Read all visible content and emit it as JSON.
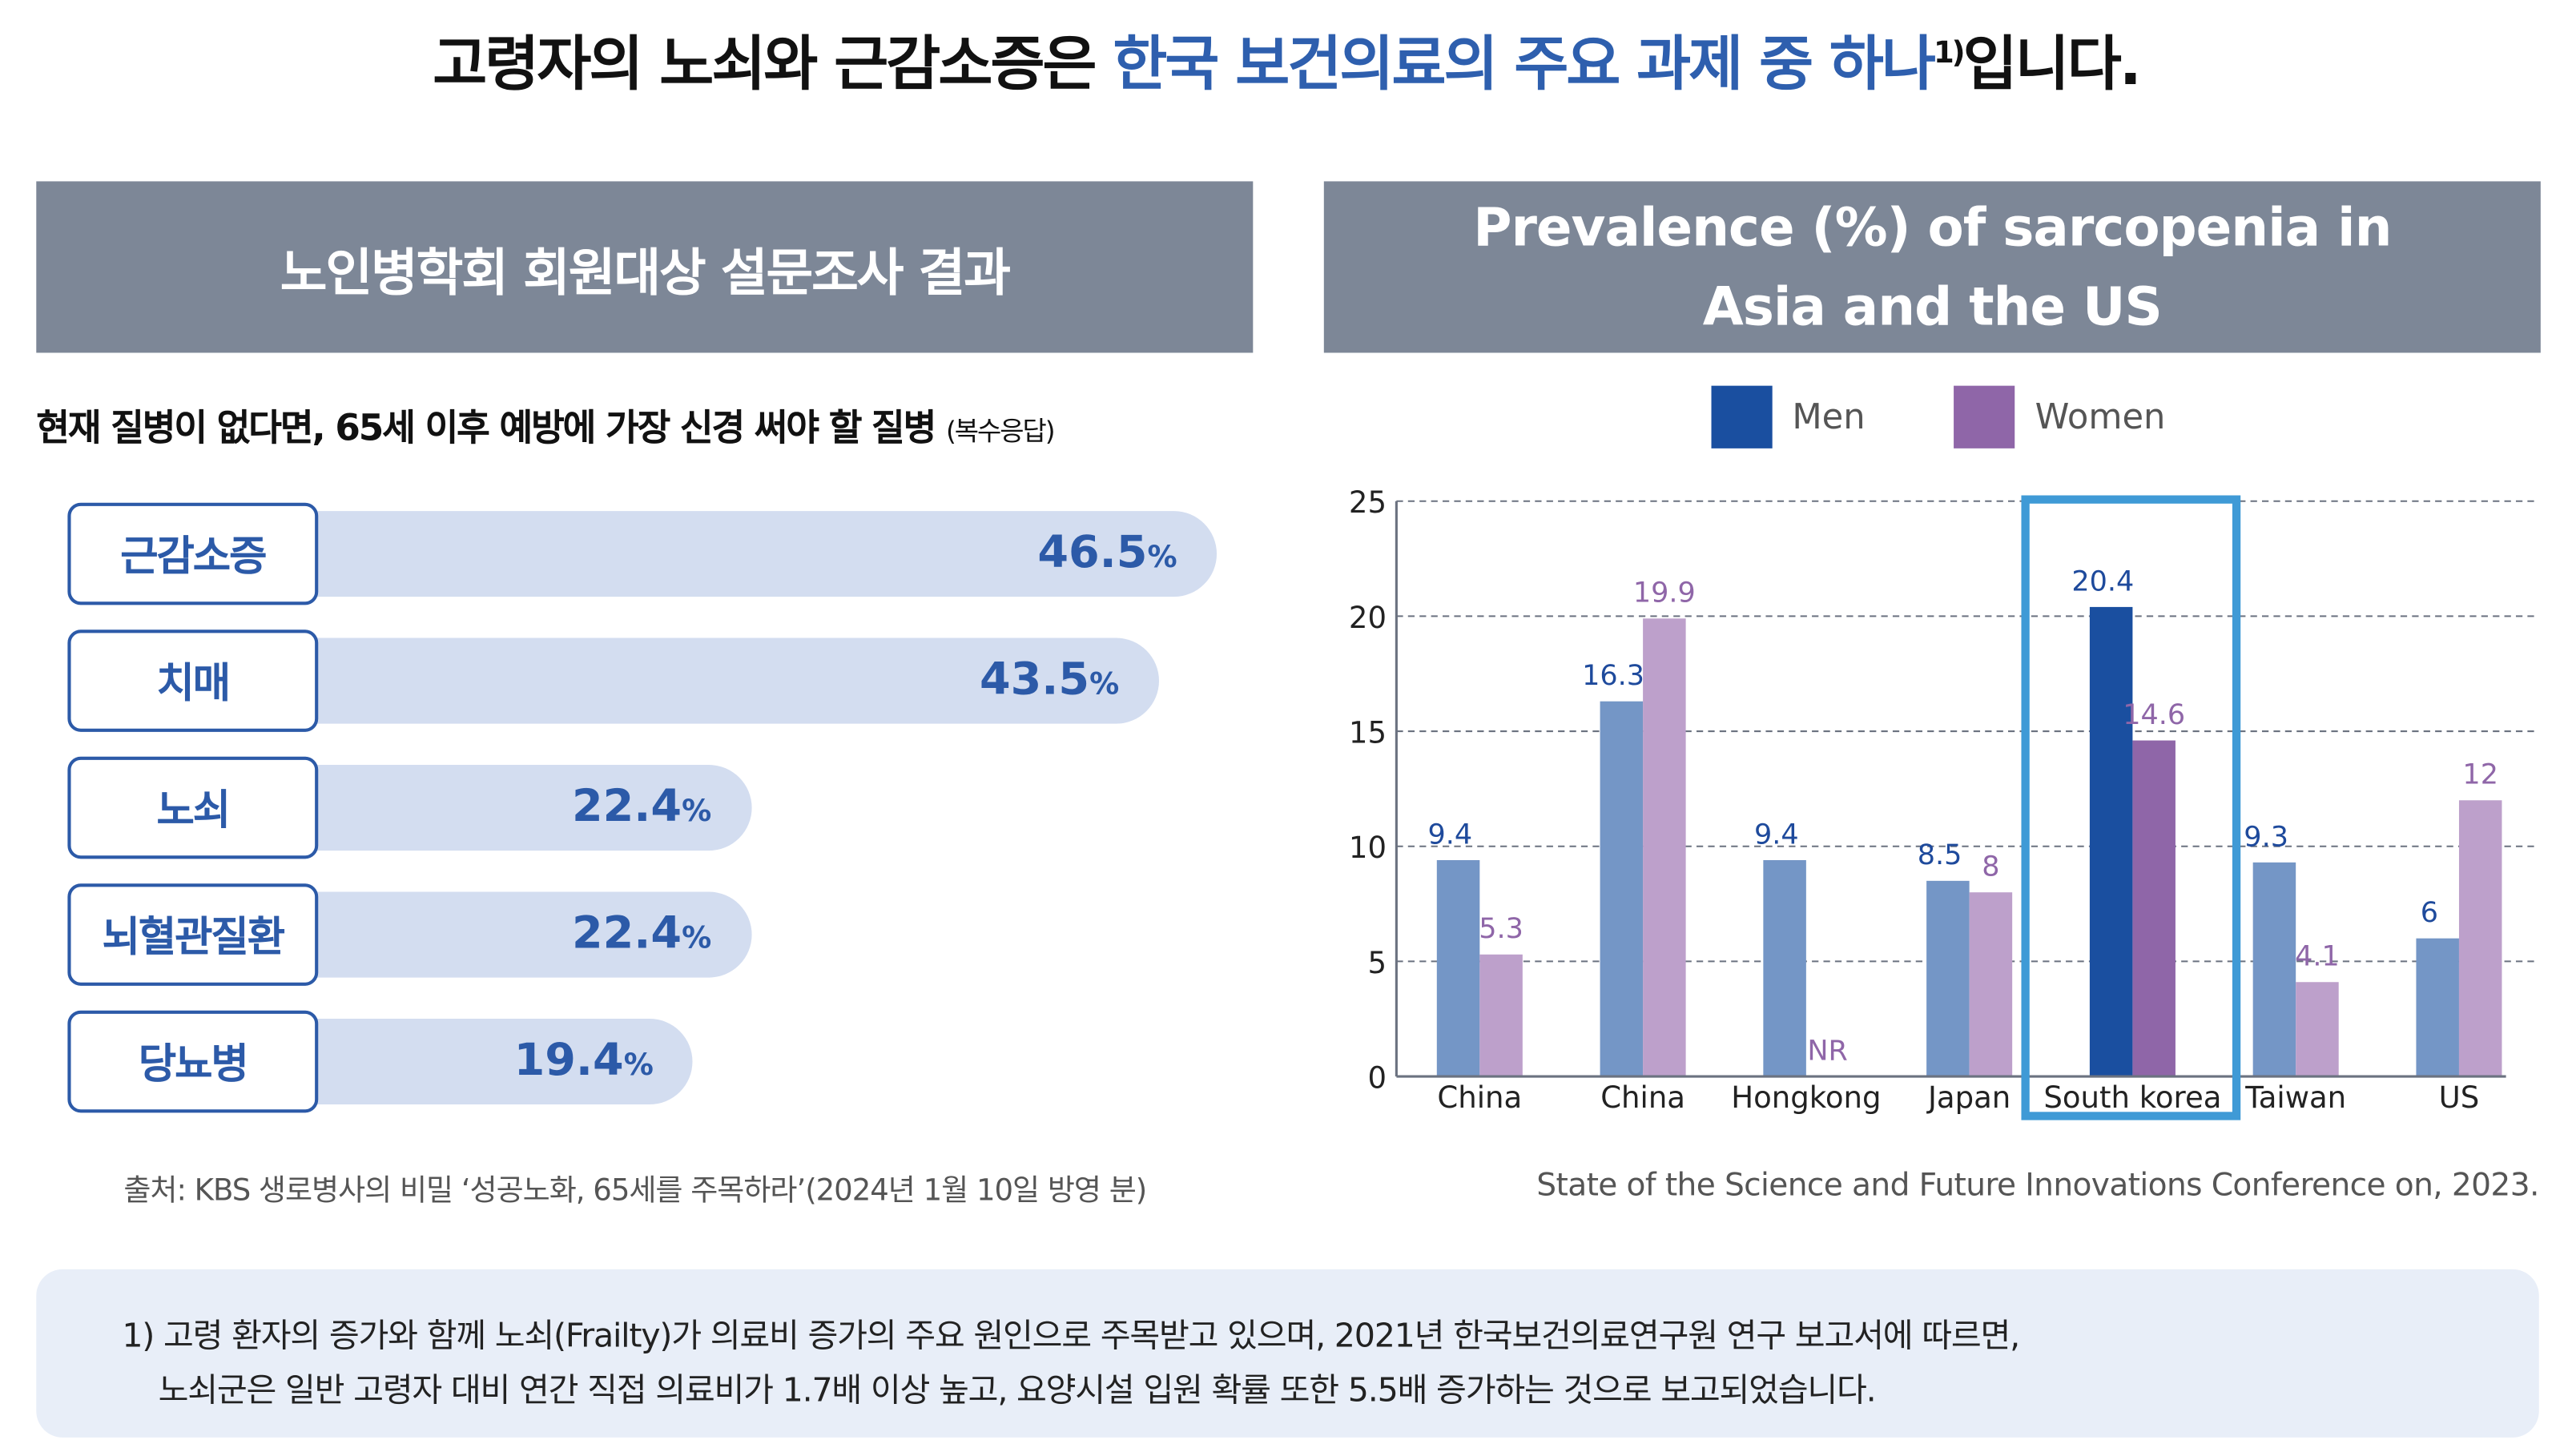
{
  "headline": {
    "black1": "고령자의 노쇠와 근감소증은 ",
    "blue": "한국 보건의료의 주요 과제 중 하나",
    "sup": "1)",
    "black2": "입니다."
  },
  "left_panel": {
    "title": "노인병학회 회원대상 설문조사 결과",
    "question": "현재 질병이 없다면, 65세 이후 예방에 가장 신경 써야 할 질병 ",
    "question_note": "(복수응답)",
    "unit": "%",
    "items": [
      {
        "label": "근감소증",
        "value": 46.5,
        "value_text": "46.5"
      },
      {
        "label": "치매",
        "value": 43.5,
        "value_text": "43.5"
      },
      {
        "label": "노쇠",
        "value": 22.4,
        "value_text": "22.4"
      },
      {
        "label": "뇌혈관질환",
        "value": 22.4,
        "value_text": "22.4"
      },
      {
        "label": "당뇨병",
        "value": 19.4,
        "value_text": "19.4"
      }
    ],
    "source": "출처: KBS 생로병사의 비밀 ‘성공노화, 65세를 주목하라’(2024년 1월 10일 방영 분)"
  },
  "right_panel": {
    "title_line1": "Prevalence (%) of sarcopenia in",
    "title_line2": "Asia and the US",
    "source": "State of the Science and Future Innovations Conference on, 2023."
  },
  "chart_data": {
    "type": "bar",
    "categories": [
      "China",
      "China",
      "Hongkong",
      "Japan",
      "South korea",
      "Taiwan",
      "US"
    ],
    "series": [
      {
        "name": "Men",
        "values": [
          9.4,
          16.3,
          9.4,
          8.5,
          20.4,
          9.3,
          6
        ],
        "labels": [
          "9.4",
          "16.3",
          "9.4",
          "8.5",
          "20.4",
          "9.3",
          "6"
        ]
      },
      {
        "name": "Women",
        "values": [
          5.3,
          19.9,
          null,
          8,
          14.6,
          4.1,
          12
        ],
        "labels": [
          "5.3",
          "19.9",
          "NR",
          "8",
          "14.6",
          "4.1",
          "12"
        ]
      }
    ],
    "ylim": [
      0,
      25
    ],
    "yticks": [
      0,
      5,
      10,
      15,
      20,
      25
    ],
    "grid": true,
    "legend": "top",
    "highlight": "South korea",
    "colors": {
      "men": "#7496c6",
      "women": "#bda0cb",
      "men_highlight": "#1a4fa0",
      "women_highlight": "#8f66a8",
      "highlight_box": "#3f9ad6",
      "men_label": "#1e4a9c",
      "women_label": "#8f66a8"
    }
  },
  "footnote": {
    "line1": "1) 고령 환자의 증가와 함께 노쇠(Frailty)가 의료비 증가의 주요 원인으로 주목받고 있으며, 2021년 한국보건의료연구원 연구 보고서에 따르면,",
    "line2": "노쇠군은 일반 고령자 대비 연간 직접 의료비가 1.7배 이상 높고, 요양시설 입원 확률 또한 5.5배 증가하는 것으로 보고되었습니다."
  }
}
